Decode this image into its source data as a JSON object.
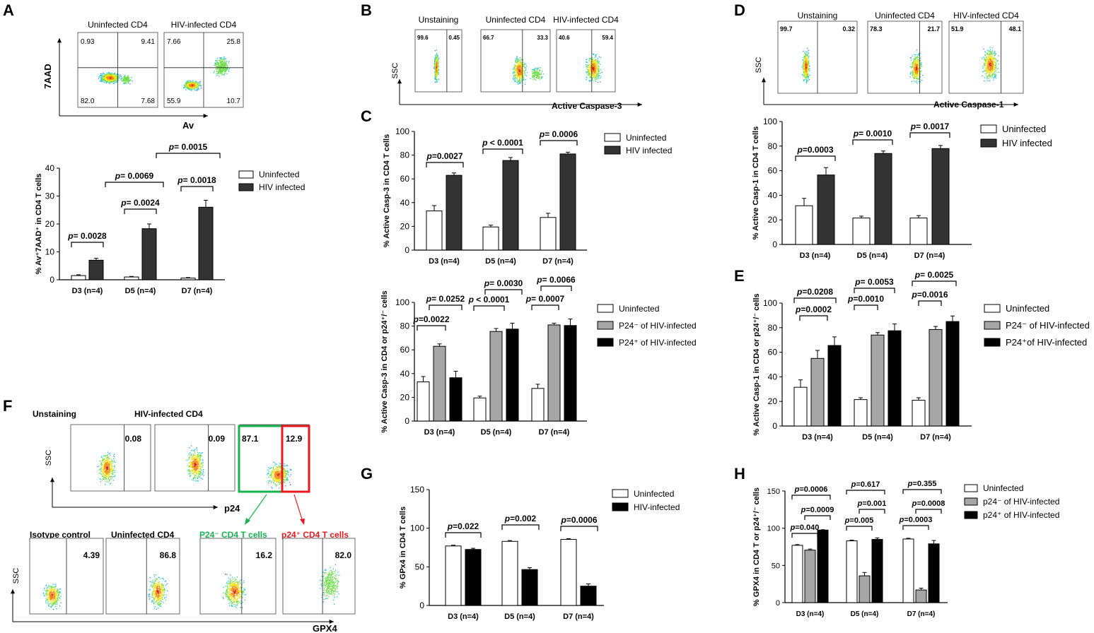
{
  "colors": {
    "uninfected": "#ffffff",
    "hiv": "#333333",
    "p24neg": "#a6a6a6",
    "p24pos": "#000000",
    "green_gate": "#16b24f",
    "red_gate": "#e8191e"
  },
  "panels": {
    "A": {
      "letter": "A",
      "flow": {
        "titles": [
          "Uninfected  CD4",
          "HIV-infected  CD4"
        ],
        "quads": [
          [
            "0.93",
            "9.41",
            "82.0",
            "7.68"
          ],
          [
            "7.66",
            "25.8",
            "55.9",
            "10.7"
          ]
        ],
        "yaxis": "7AAD",
        "xaxis": "Av"
      }
    },
    "B": {
      "letter": "B",
      "flow": {
        "titles": [
          "Unstaining",
          "Uninfected  CD4",
          "HIV-infected  CD4"
        ],
        "vals": [
          [
            "99.6",
            "0.45"
          ],
          [
            "66.7",
            "33.3"
          ],
          [
            "40.6",
            "59.4"
          ]
        ],
        "yaxis": "SSC",
        "xaxis": "Active Caspase-3"
      }
    },
    "C": {
      "letter": "C"
    },
    "D": {
      "letter": "D",
      "flow": {
        "titles": [
          "Unstaining",
          "Uninfected  CD4",
          "HIV-infected  CD4"
        ],
        "vals": [
          [
            "99.7",
            "0.32"
          ],
          [
            "78.3",
            "21.7"
          ],
          [
            "51.9",
            "48.1"
          ]
        ],
        "yaxis": "SSC",
        "xaxis": "Active Caspase-1"
      }
    },
    "E": {
      "letter": "E"
    },
    "F": {
      "letter": "F",
      "top": {
        "titles": [
          "Unstaining",
          "HIV-infected  CD4"
        ],
        "vals": [
          "0.08",
          "0.09",
          "87.1",
          "12.9"
        ],
        "xaxis": "p24",
        "yaxis": "SSC"
      },
      "bottom": {
        "titles": [
          "Isotype  control",
          "Uninfected  CD4",
          "P24⁻ CD4 T cells",
          "p24⁺ CD4 T cells"
        ],
        "vals": [
          "4.39",
          "86.8",
          "16.2",
          "82.0"
        ],
        "xaxis": "GPX4",
        "yaxis": "SSC"
      }
    },
    "G": {
      "letter": "G"
    },
    "H": {
      "letter": "H"
    }
  },
  "chart_data": [
    {
      "id": "A",
      "type": "bar",
      "ylabel": "% Av⁺7AAD⁺ in CD4 T cells",
      "ylim": [
        0,
        40
      ],
      "yticks": [
        0,
        10,
        20,
        30,
        40
      ],
      "categories": [
        "D3 (n=4)",
        "D5 (n=4)",
        "D7 (n=4)"
      ],
      "series": [
        {
          "name": "Uninfected",
          "values": [
            1.5,
            1.0,
            0.6
          ],
          "errors": [
            0.3,
            0.2,
            0.2
          ]
        },
        {
          "name": "HIV infected",
          "values": [
            7.0,
            18.3,
            26.0
          ],
          "errors": [
            0.7,
            1.7,
            2.5
          ]
        }
      ],
      "annotations": [
        "p= 0.0028",
        "p= 0.0024",
        "p= 0.0018",
        "p= 0.0069",
        "p= 0.0015"
      ]
    },
    {
      "id": "C-top",
      "type": "bar",
      "ylabel": "% Active Casp-3 in CD4 T cells",
      "ylim": [
        0,
        100
      ],
      "yticks": [
        0,
        20,
        40,
        60,
        80,
        100
      ],
      "categories": [
        "D3 (n=4)",
        "D5 (n=4)",
        "D7 (n=4)"
      ],
      "series": [
        {
          "name": "Uninfected",
          "values": [
            33,
            19.5,
            27.5
          ],
          "errors": [
            4.5,
            1.5,
            3.5
          ]
        },
        {
          "name": "HIV infected",
          "values": [
            63,
            75.5,
            81
          ],
          "errors": [
            2,
            2.5,
            1.5
          ]
        }
      ],
      "annotations": [
        "p=0.0027",
        "p < 0.0001",
        "p= 0.0006"
      ]
    },
    {
      "id": "C-bottom",
      "type": "bar",
      "ylabel": "% Active Casp-3 in CD4 or p24⁺/⁻ cells",
      "ylim": [
        0,
        100
      ],
      "yticks": [
        0,
        20,
        40,
        60,
        80,
        100
      ],
      "categories": [
        "D3 (n=4)",
        "D5 (n=4)",
        "D7 (n=4)"
      ],
      "series": [
        {
          "name": "Uninfected",
          "values": [
            33,
            19.5,
            27.5
          ],
          "errors": [
            4.5,
            1.5,
            3.5
          ]
        },
        {
          "name": "P24⁻ of HIV-infected",
          "values": [
            63,
            75.5,
            81
          ],
          "errors": [
            2,
            2.5,
            1.5
          ]
        },
        {
          "name": "P24⁺ of HIV-infected",
          "values": [
            36.5,
            77.5,
            80.5
          ],
          "errors": [
            5.5,
            5,
            5.5
          ]
        }
      ],
      "annotations": [
        "p= 0.0252",
        "p=0.0022",
        "p= 0.0030",
        "p < 0.0001",
        "p= 0.0066",
        "p= 0.0007"
      ]
    },
    {
      "id": "D-chart",
      "type": "bar",
      "ylabel": "% Active Casp-1 in CD4 T cells",
      "ylim": [
        0,
        100
      ],
      "yticks": [
        0,
        20,
        40,
        60,
        80,
        100
      ],
      "categories": [
        "D3 (n=4)",
        "D5 (n=4)",
        "D7 (n=4)"
      ],
      "series": [
        {
          "name": "Uninfected",
          "values": [
            31.5,
            21.5,
            21.5
          ],
          "errors": [
            6,
            1.5,
            2
          ]
        },
        {
          "name": "HIV infected",
          "values": [
            56.5,
            74,
            78
          ],
          "errors": [
            6,
            2,
            2.5
          ]
        }
      ],
      "annotations": [
        "p=0.0003",
        "p= 0.0010",
        "p= 0.0017"
      ]
    },
    {
      "id": "E-chart",
      "type": "bar",
      "ylabel": "% Active Casp-1 in CD4 or p24⁺/⁻ cells",
      "ylim": [
        0,
        100
      ],
      "yticks": [
        0,
        20,
        40,
        60,
        80,
        100
      ],
      "categories": [
        "D3 (n=4)",
        "D5 (n=4)",
        "D7 (n=4)"
      ],
      "series": [
        {
          "name": "Uninfected",
          "values": [
            31.5,
            21.5,
            21
          ],
          "errors": [
            6,
            1.5,
            2
          ]
        },
        {
          "name": "P24⁻ of HIV-infected",
          "values": [
            55,
            74,
            78.5
          ],
          "errors": [
            6.5,
            2,
            2.5
          ]
        },
        {
          "name": "P24⁺of HIV-infected",
          "values": [
            65.5,
            77.5,
            85
          ],
          "errors": [
            7,
            5.5,
            4.5
          ]
        }
      ],
      "annotations": [
        "p=0.0208",
        "p=0.0002",
        "p= 0.0053",
        "p=0.0010",
        "p= 0.0025",
        "p=0.0016"
      ]
    },
    {
      "id": "G-chart",
      "type": "bar",
      "ylabel": "% GPx4 in CD4 T cells",
      "ylim": [
        0,
        150
      ],
      "yticks": [
        0,
        50,
        100,
        150
      ],
      "categories": [
        "D3 (n=4)",
        "D5 (n=4)",
        "D7 (n=4)"
      ],
      "series": [
        {
          "name": "Uninfected",
          "values": [
            77,
            83,
            85.5
          ],
          "errors": [
            1,
            1,
            1
          ]
        },
        {
          "name": "HIV-infected",
          "values": [
            72.5,
            46.5,
            25
          ],
          "errors": [
            1.5,
            2.5,
            3
          ]
        }
      ],
      "annotations": [
        "p=0.022",
        "p=0.002",
        "p=0.0006"
      ]
    },
    {
      "id": "H-chart",
      "type": "bar",
      "ylabel": "% GPX4 in CD4 T or p24⁺/⁻ cells",
      "ylim": [
        0,
        150
      ],
      "yticks": [
        0,
        50,
        100,
        150
      ],
      "categories": [
        "D3 (n=4)",
        "D5 (n=4)",
        "D7 (n=4)"
      ],
      "series": [
        {
          "name": "Uninfected",
          "values": [
            77,
            83,
            85.5
          ],
          "errors": [
            1,
            1,
            1
          ]
        },
        {
          "name": "p24⁻ of HIV-infected",
          "values": [
            70.5,
            36,
            17
          ],
          "errors": [
            1.5,
            4.5,
            2.5
          ]
        },
        {
          "name": "p24⁺ of HIV-infected",
          "values": [
            97.5,
            85,
            79
          ],
          "errors": [
            0.5,
            2,
            4.5
          ]
        }
      ],
      "annotations": [
        "p=0.0006",
        "p=0.0009",
        "p=0.040",
        "p=0.617",
        "p=0.001",
        "p=0.005",
        "p=0.355",
        "p=0.0008",
        "p=0.0003"
      ]
    }
  ]
}
